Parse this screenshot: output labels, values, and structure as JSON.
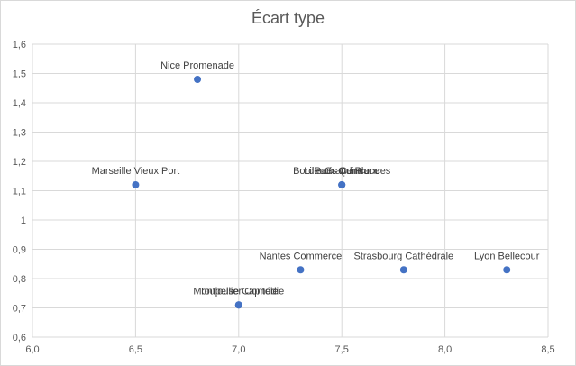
{
  "chart_data": {
    "type": "scatter",
    "title": "Écart type",
    "xlabel": "",
    "ylabel": "",
    "xlim": [
      6.0,
      8.5
    ],
    "ylim": [
      0.6,
      1.6
    ],
    "grid": true,
    "x_ticks": [
      6.0,
      6.5,
      7.0,
      7.5,
      8.0,
      8.5
    ],
    "x_tick_labels": [
      "6,0",
      "6,5",
      "7,0",
      "7,5",
      "8,0",
      "8,5"
    ],
    "y_ticks": [
      0.6,
      0.7,
      0.8,
      0.9,
      1.0,
      1.1,
      1.2,
      1.3,
      1.4,
      1.5,
      1.6
    ],
    "y_tick_labels": [
      "0,6",
      "0,7",
      "0,8",
      "0,9",
      "1",
      "1,1",
      "1,2",
      "1,3",
      "1,4",
      "1,5",
      "1,6"
    ],
    "marker_color": "#4472c4",
    "points": [
      {
        "label": "Nice Promenade",
        "x": 6.8,
        "y": 1.48
      },
      {
        "label": "Marseille Vieux Port",
        "x": 6.5,
        "y": 1.12
      },
      {
        "label": "Bordeaux Quinconces",
        "x": 7.5,
        "y": 1.12
      },
      {
        "label": "Lille Grand Place",
        "x": 7.5,
        "y": 1.12
      },
      {
        "label": "Paris Centre",
        "x": 7.5,
        "y": 1.12
      },
      {
        "label": "Nantes Commerce",
        "x": 7.3,
        "y": 0.83
      },
      {
        "label": "Strasbourg Cathédrale",
        "x": 7.8,
        "y": 0.83
      },
      {
        "label": "Lyon Bellecour",
        "x": 8.3,
        "y": 0.83
      },
      {
        "label": "Montpellier Comédie",
        "x": 7.0,
        "y": 0.71
      },
      {
        "label": "Toulouse Capitole",
        "x": 7.0,
        "y": 0.71
      }
    ]
  }
}
